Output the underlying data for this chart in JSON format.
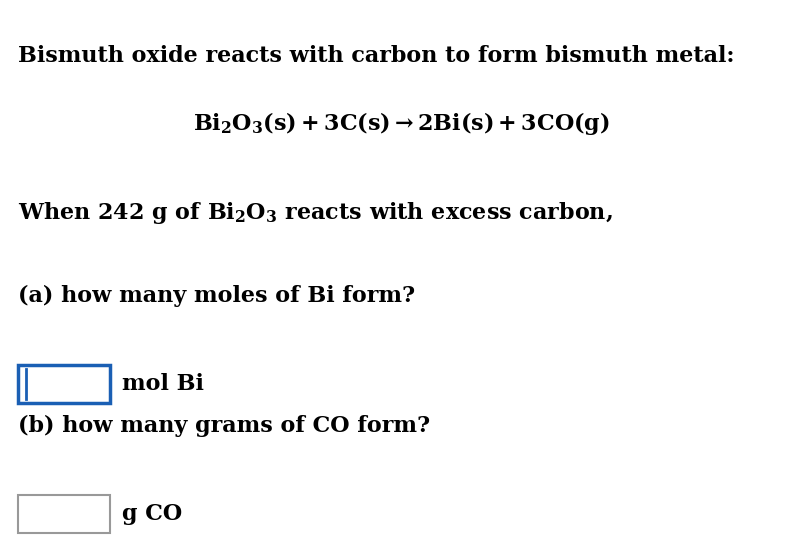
{
  "background_color": "#ffffff",
  "title_text": "Bismuth oxide reacts with carbon to form bismuth metal:",
  "equation_text": "$\\mathbf{Bi_2O_3(s) + 3C(s) \\rightarrow 2Bi(s) + 3CO(g)}$",
  "line3_text": "When 242 g of $\\mathbf{Bi_2O_3}$ reacts with excess carbon,",
  "line_a_text": "(a) how many moles of Bi form?",
  "label_a_text": "mol Bi",
  "line_b_text": "(b) how many grams of CO form?",
  "label_b_text": "g CO",
  "box_a_color": "#1a5fb4",
  "box_b_color": "#999999",
  "text_color": "#000000",
  "font_size_title": 16,
  "font_size_eq": 16,
  "font_size_body": 16,
  "font_size_label": 16,
  "fig_width": 8.02,
  "fig_height": 5.44,
  "dpi": 100
}
